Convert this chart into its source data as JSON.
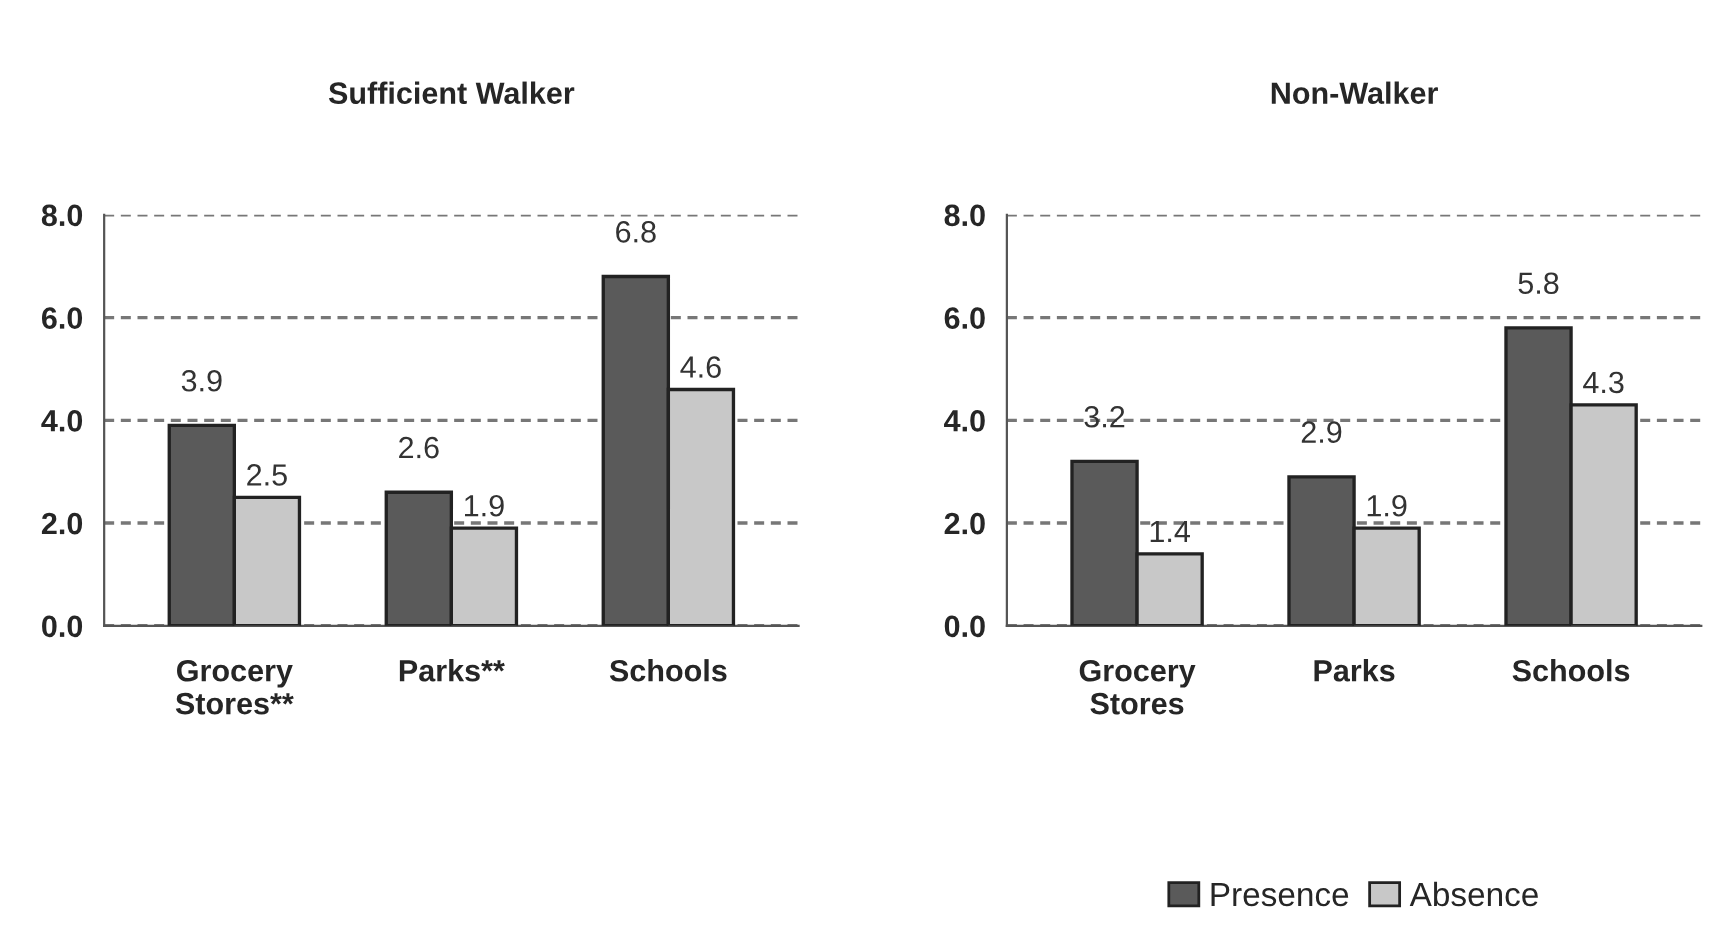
{
  "chart_data": [
    {
      "type": "bar",
      "title": "Sufficient Walker",
      "categories": [
        "Grocery\nStores**",
        "Parks**",
        "Schools"
      ],
      "series": [
        {
          "color": "#5a5a5a",
          "values": [
            3.9,
            2.6,
            6.8
          ]
        },
        {
          "color": "#c8c8c8",
          "values": [
            2.5,
            1.9,
            4.6
          ]
        }
      ],
      "ylim": [
        0,
        8
      ],
      "yticks": [
        {
          "value": 0,
          "label": "0.0"
        },
        {
          "value": 2,
          "label": "2.0"
        },
        {
          "value": 4,
          "label": "4.0"
        },
        {
          "value": 6,
          "label": "6.0"
        },
        {
          "value": 8,
          "label": "8.0"
        }
      ],
      "grid": "y",
      "data_labels": true,
      "legend": false
    },
    {
      "type": "bar",
      "title": "Non-Walker",
      "categories": [
        "Grocery\nStores",
        "Parks",
        "Schools"
      ],
      "series": [
        {
          "name": "Presence",
          "color": "#5a5a5a",
          "values": [
            3.2,
            2.9,
            5.8
          ]
        },
        {
          "name": "Absence",
          "color": "#c8c8c8",
          "values": [
            1.4,
            1.9,
            4.3
          ]
        }
      ],
      "ylim": [
        0,
        8
      ],
      "yticks": [
        {
          "value": 0,
          "label": "0.0"
        },
        {
          "value": 2,
          "label": "2.0"
        },
        {
          "value": 4,
          "label": "4.0"
        },
        {
          "value": 6,
          "label": "6.0"
        },
        {
          "value": 8,
          "label": "8.0"
        }
      ],
      "grid": "y",
      "data_labels": true,
      "legend": "bottom"
    }
  ]
}
